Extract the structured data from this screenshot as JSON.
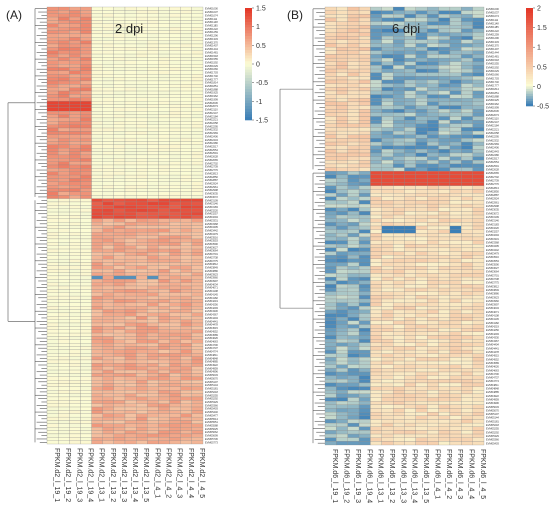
{
  "figure": {
    "panels": [
      {
        "label": "(A)",
        "title": "2 dpi"
      },
      {
        "label": "(B)",
        "title": "6 dpi"
      }
    ]
  },
  "chart_data": [
    {
      "type": "heatmap",
      "title": "2 dpi",
      "panel_label": "(A)",
      "columns": [
        "FPKM.d2_l_19_1",
        "FPKM.d2_l_19_2",
        "FPKM.d2_l_19_3",
        "FPKM.d2_l_19_4",
        "FPKM.d2_l_13_1",
        "FPKM.d2_l_13_2",
        "FPKM.d2_l_13_3",
        "FPKM.d2_l_13_4",
        "FPKM.d2_l_13_5",
        "FPKM.d2_l_4_1",
        "FPKM.d2_l_4_2",
        "FPKM.d2_l_4_3",
        "FPKM.d2_l_4_4",
        "FPKM.d2_l_4_5"
      ],
      "rows": 130,
      "row_label_prefix": "EVM0",
      "color_scale": {
        "min": -1.5,
        "max": 1.5,
        "ticks": [
          "1.5",
          "1",
          "0.5",
          "0",
          "-0.5",
          "-1",
          "-1.5"
        ],
        "low": "#3c7fb6",
        "mid": "#fcfcd4",
        "high": "#e43828"
      },
      "blocks": [
        {
          "rows": [
            0,
            56
          ],
          "columns": [
            0,
            3
          ],
          "value": 0.8
        },
        {
          "rows": [
            0,
            56
          ],
          "columns": [
            4,
            13
          ],
          "value": 0.0
        },
        {
          "rows": [
            57,
            129
          ],
          "columns": [
            0,
            3
          ],
          "value": 0.0
        },
        {
          "rows": [
            57,
            129
          ],
          "columns": [
            4,
            13
          ],
          "value": 0.6
        }
      ]
    },
    {
      "type": "heatmap",
      "title": "6 dpi",
      "panel_label": "(B)",
      "columns": [
        "FPKM.d6_l_19_1",
        "FPKM.d6_l_19_2",
        "FPKM.d6_l_19_3",
        "FPKM.d6_l_19_4",
        "FPKM.d6_l_13_1",
        "FPKM.d6_l_13_2",
        "FPKM.d6_l_13_3",
        "FPKM.d6_l_13_4",
        "FPKM.d6_l_13_5",
        "FPKM.d6_l_4_1",
        "FPKM.d6_l_4_2",
        "FPKM.d6_l_4_3",
        "FPKM.d6_l_4_4",
        "FPKM.d6_l_4_5"
      ],
      "rows": 120,
      "row_label_prefix": "EVM0",
      "color_scale": {
        "min": -0.5,
        "max": 2,
        "ticks": [
          "2",
          "1.5",
          "1",
          "0.5",
          "0",
          "-0.5"
        ],
        "low": "#3c7fb6",
        "mid": "#fcfcd4",
        "high": "#e43828"
      },
      "blocks": [
        {
          "rows": [
            0,
            44
          ],
          "columns": [
            0,
            3
          ],
          "value": 0.4
        },
        {
          "rows": [
            0,
            44
          ],
          "columns": [
            4,
            13
          ],
          "value": -0.3
        },
        {
          "rows": [
            45,
            119
          ],
          "columns": [
            0,
            3
          ],
          "value": -0.3
        },
        {
          "rows": [
            45,
            119
          ],
          "columns": [
            4,
            13
          ],
          "value": 0.3
        }
      ]
    }
  ]
}
